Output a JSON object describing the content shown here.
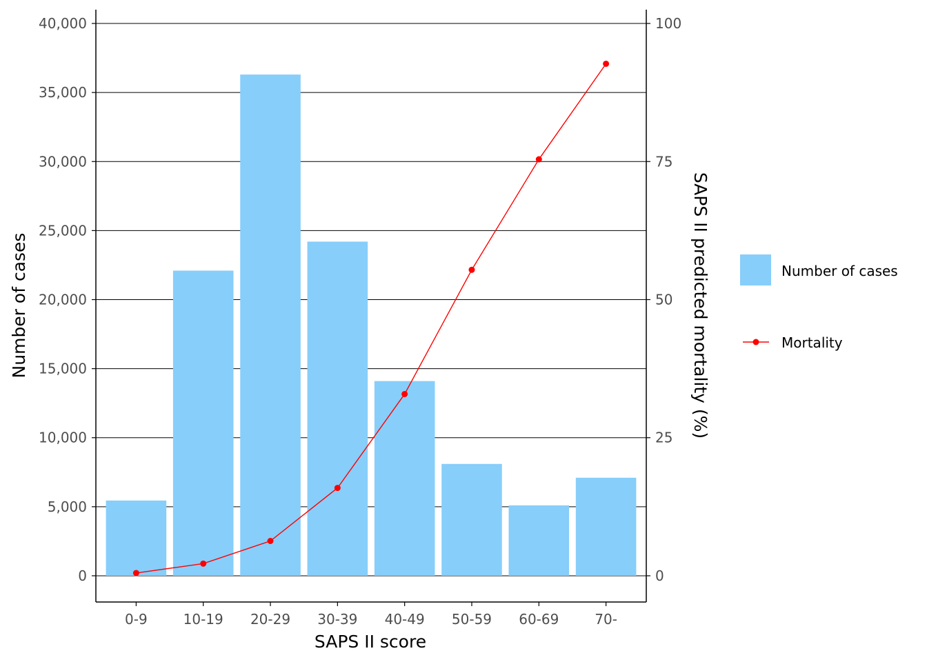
{
  "chart_data": {
    "type": "bar",
    "categories": [
      "0-9",
      "10-19",
      "20-29",
      "30-39",
      "40-49",
      "50-59",
      "60-69",
      "70-"
    ],
    "series": [
      {
        "name": "Number of cases",
        "type": "bar",
        "axis": "left",
        "color": "#87CEFA",
        "values": [
          5450,
          22100,
          36300,
          24200,
          14100,
          8100,
          5100,
          7100
        ]
      },
      {
        "name": "Mortality",
        "type": "line",
        "axis": "right",
        "color": "#FF0000",
        "values": [
          0.5,
          2.2,
          6.3,
          15.9,
          32.9,
          55.4,
          75.4,
          92.7
        ]
      }
    ],
    "xlabel": "SAPS II score",
    "ylabel": "Number of cases",
    "y2label": "SAPS II predicted mortality (%)",
    "ylim": [
      -1900,
      41000
    ],
    "y2lim": [
      -4.75,
      102.5
    ],
    "yticks": [
      0,
      5000,
      10000,
      15000,
      20000,
      25000,
      30000,
      35000,
      40000
    ],
    "yticklabels": [
      "0",
      "5,000",
      "10,000",
      "15,000",
      "20,000",
      "25,000",
      "30,000",
      "35,000",
      "40,000"
    ],
    "y2ticks": [
      0,
      25,
      50,
      75,
      100
    ],
    "y2ticklabels": [
      "0",
      "25",
      "50",
      "75",
      "100"
    ],
    "grid": "horizontal major",
    "legend": "right"
  }
}
